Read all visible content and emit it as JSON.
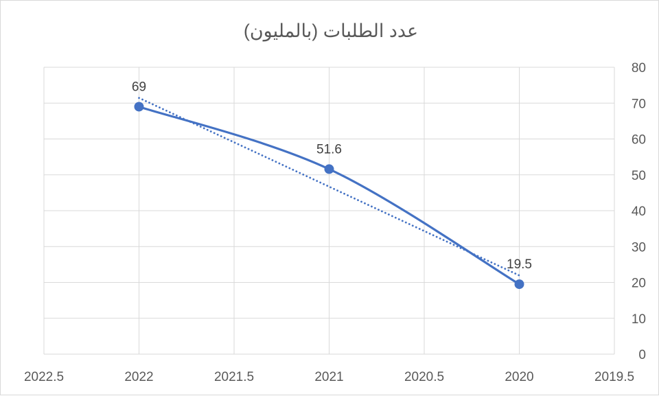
{
  "chart_data": {
    "type": "scatter",
    "title": "عدد الطلبات (بالمليون)",
    "x_reversed": true,
    "y_axis_side": "right",
    "xlim": [
      2019.5,
      2022.5
    ],
    "ylim": [
      0,
      80
    ],
    "x_ticks": [
      2022.5,
      2022,
      2021.5,
      2021,
      2020.5,
      2020,
      2019.5
    ],
    "x_tick_labels": [
      "2022.5",
      "2022",
      "2021.5",
      "2021",
      "2020.5",
      "2020",
      "2019.5"
    ],
    "y_ticks": [
      0,
      10,
      20,
      30,
      40,
      50,
      60,
      70,
      80
    ],
    "y_tick_labels": [
      "0",
      "10",
      "20",
      "30",
      "40",
      "50",
      "60",
      "70",
      "80"
    ],
    "grid": true,
    "legend": "none",
    "series": [
      {
        "x": [
          2022,
          2021,
          2020
        ],
        "y": [
          69,
          51.6,
          19.5
        ],
        "data_labels": [
          "69",
          "51.6",
          "19.5"
        ],
        "color": "#4472c4",
        "line": "smooth",
        "markers": true
      }
    ],
    "trendline": {
      "type": "linear",
      "style": "dotted",
      "color": "#4472c4"
    }
  }
}
